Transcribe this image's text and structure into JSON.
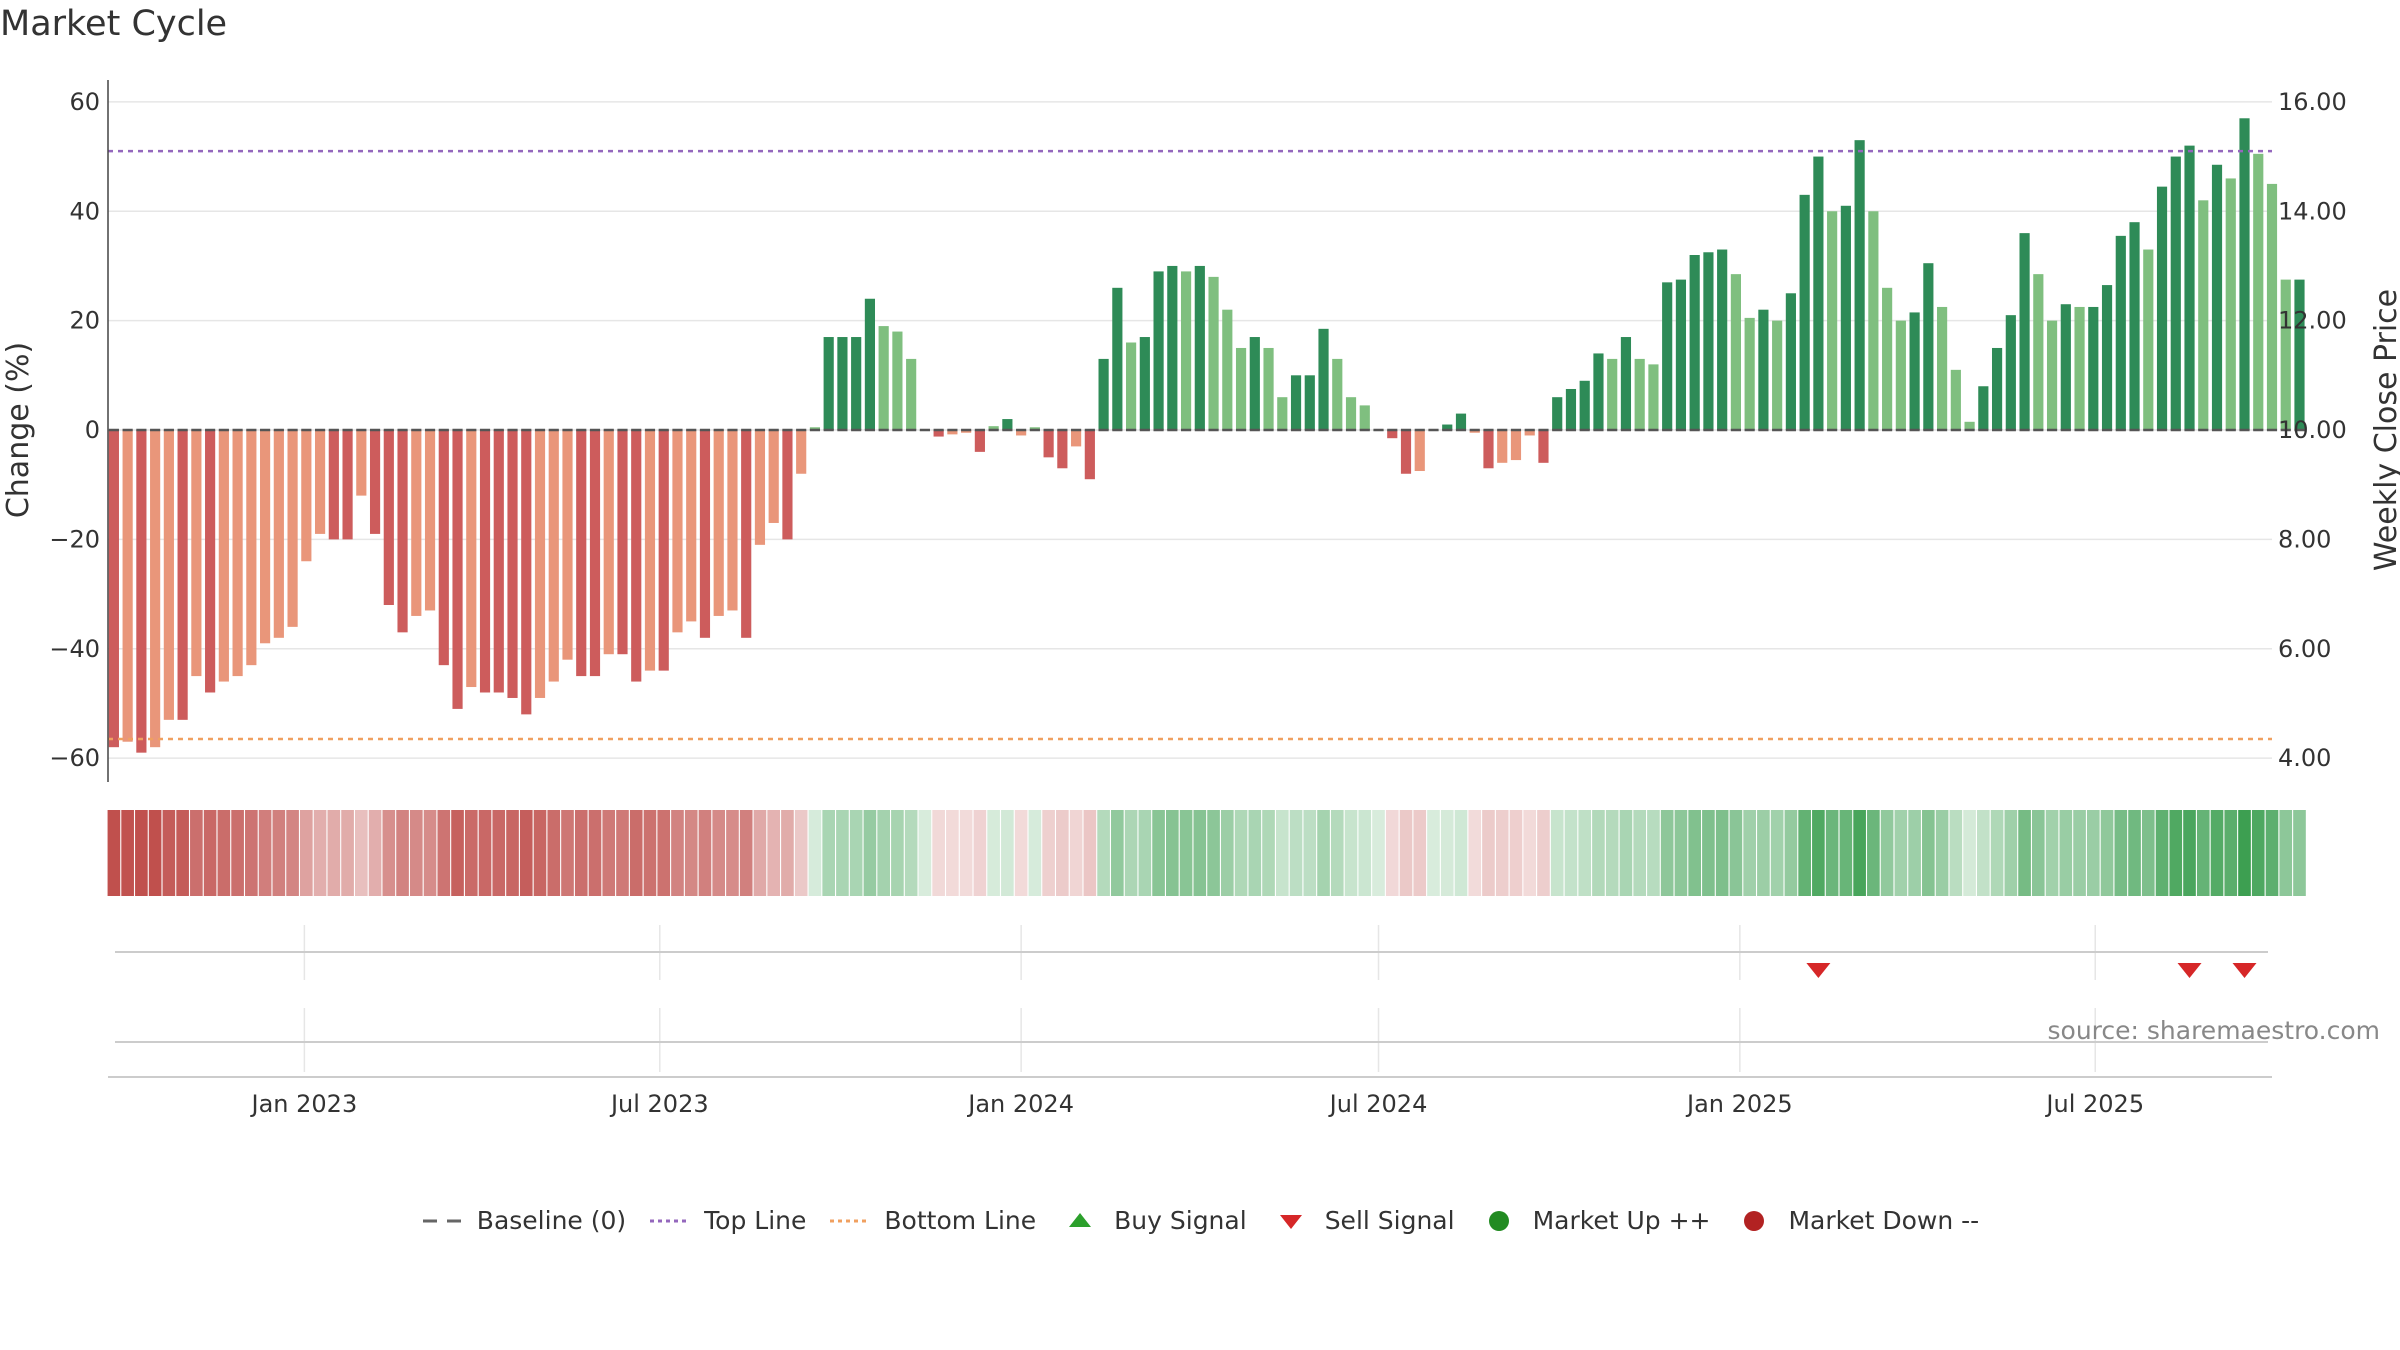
{
  "title": "Market Cycle",
  "source": "source: sharemaestro.com",
  "colors": {
    "pos_dark": "#2e8b57",
    "pos_light": "#7fbf7f",
    "neg_dark": "#cd5c5c",
    "neg_light": "#e9967a",
    "top_line": "#9467bd",
    "bottom_line": "#f0a060",
    "baseline": "#555555",
    "sell": "#d62728",
    "buy": "#2ca02c",
    "up": "#228b22",
    "down": "#b22222"
  },
  "legend": [
    {
      "label": "Baseline (0)",
      "symbol": "dash",
      "color": "#666666"
    },
    {
      "label": "Top Line",
      "symbol": "dotted",
      "color": "#9467bd"
    },
    {
      "label": "Bottom Line",
      "symbol": "dotted",
      "color": "#f0a060"
    },
    {
      "label": "Buy Signal",
      "symbol": "triangle-up",
      "color": "#2ca02c"
    },
    {
      "label": "Sell Signal",
      "symbol": "triangle-down",
      "color": "#d62728"
    },
    {
      "label": "Market Up ++",
      "symbol": "circle",
      "color": "#228b22"
    },
    {
      "label": "Market Down --",
      "symbol": "circle",
      "color": "#b22222"
    }
  ],
  "chart_data": {
    "type": "bar",
    "title": "Market Cycle",
    "ylabel": "Change (%)",
    "y2label": "Weekly Close Price",
    "ylim": [
      -64,
      64
    ],
    "yticks": [
      60,
      40,
      20,
      0,
      -20,
      -40,
      -60
    ],
    "ytick_labels": [
      "60",
      "40",
      "20",
      "0",
      "−20",
      "−40",
      "−60"
    ],
    "y2lim": [
      3.6,
      16.4
    ],
    "y2ticks": [
      16,
      14,
      12,
      10,
      8,
      6,
      4
    ],
    "y2tick_labels": [
      "16.00",
      "14.00",
      "12.00",
      "10.00",
      "8.00",
      "6.00",
      "4.00"
    ],
    "top_line": 51,
    "bottom_line": -56.5,
    "xlim": [
      "2022-09-23",
      "2025-09-29"
    ],
    "bar_start": "2022-09-26",
    "bar_interval_days": 7,
    "xticks": [
      "2023-01-01",
      "2023-07-01",
      "2024-01-01",
      "2024-07-01",
      "2025-01-01",
      "2025-07-01"
    ],
    "xtick_labels": [
      "Jan 2023",
      "Jul 2023",
      "Jan 2024",
      "Jul 2024",
      "Jan 2025",
      "Jul 2025"
    ],
    "values": [
      -58,
      -57,
      -59,
      -58,
      -53,
      -53,
      -45,
      -48,
      -46,
      -45,
      -43,
      -39,
      -38,
      -36,
      -24,
      -19,
      -20,
      -20,
      -12,
      -19,
      -32,
      -37,
      -34,
      -33,
      -43,
      -51,
      -47,
      -48,
      -48,
      -49,
      -52,
      -49,
      -46,
      -42,
      -45,
      -45,
      -41,
      -41,
      -46,
      -44,
      -44,
      -37,
      -35,
      -38,
      -34,
      -33,
      -38,
      -21,
      -17,
      -20,
      -8,
      0.5,
      17,
      17,
      17,
      24,
      19,
      18,
      13,
      0,
      -1.2,
      -0.8,
      -0.5,
      -4,
      0.7,
      2,
      -1,
      0.5,
      -5,
      -7,
      -3,
      -9,
      13,
      26,
      16,
      17,
      29,
      30,
      29,
      30,
      28,
      22,
      15,
      17,
      15,
      6,
      10,
      10,
      18.5,
      13,
      6,
      4.5,
      0,
      -1.5,
      -8,
      -7.5,
      0,
      1,
      3,
      -0.5,
      -7,
      -6,
      -5.5,
      -1,
      -6,
      6,
      7.5,
      9,
      14,
      13,
      17,
      13,
      12,
      27,
      27.5,
      32,
      32.5,
      33,
      28.5,
      20.5,
      22,
      20,
      25,
      43,
      50,
      40,
      41,
      53,
      40,
      26,
      20,
      21.5,
      30.5,
      22.5,
      11,
      1.5,
      8,
      15,
      21,
      36,
      28.5,
      20,
      23,
      22.5,
      22.5,
      26.5,
      35.5,
      38,
      33,
      44.5,
      50,
      52,
      42,
      48.5,
      46,
      57,
      50.5,
      45,
      27.5,
      27.5
    ],
    "sell_signals": [
      "2025-02-10",
      "2025-08-18",
      "2025-09-15"
    ],
    "buy_signals": []
  }
}
